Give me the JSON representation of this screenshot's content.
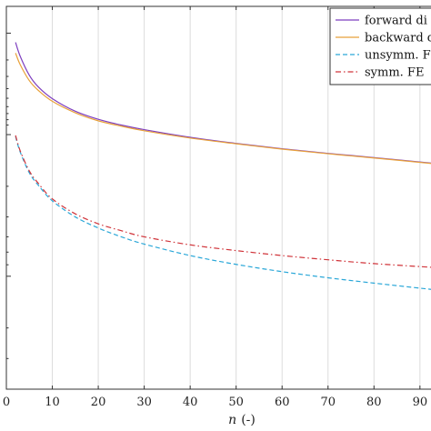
{
  "chart_data": {
    "type": "line",
    "title": "",
    "xlabel_var": "n",
    "xlabel_unit": "(-)",
    "ylabel": "",
    "xlim": [
      0,
      93
    ],
    "ylim": [
      0,
      1
    ],
    "x_ticks": [
      0,
      10,
      20,
      30,
      40,
      50,
      60,
      70,
      80,
      90
    ],
    "grid": "vertical",
    "legend_position": "top-right",
    "series": [
      {
        "name": "forward di",
        "color": "#7e3fbf",
        "dash": "solid",
        "x": [
          2,
          3,
          5,
          7,
          10,
          15,
          20,
          25,
          30,
          40,
          50,
          60,
          70,
          80,
          93
        ],
        "y": [
          0.906,
          0.87,
          0.82,
          0.789,
          0.759,
          0.726,
          0.705,
          0.69,
          0.678,
          0.658,
          0.642,
          0.628,
          0.616,
          0.605,
          0.59
        ]
      },
      {
        "name": "backward d",
        "color": "#e8a13a",
        "dash": "solid",
        "x": [
          2,
          3,
          5,
          7,
          10,
          15,
          20,
          25,
          30,
          40,
          50,
          60,
          70,
          80,
          93
        ],
        "y": [
          0.878,
          0.848,
          0.806,
          0.78,
          0.752,
          0.722,
          0.701,
          0.687,
          0.675,
          0.656,
          0.641,
          0.627,
          0.615,
          0.604,
          0.589
        ]
      },
      {
        "name": "unsymm. F",
        "color": "#2aa7d8",
        "dash": "dashed",
        "x": [
          2,
          3,
          5,
          7,
          10,
          15,
          20,
          25,
          30,
          40,
          50,
          60,
          70,
          80,
          93
        ],
        "y": [
          0.66,
          0.62,
          0.565,
          0.532,
          0.492,
          0.45,
          0.421,
          0.398,
          0.379,
          0.349,
          0.326,
          0.307,
          0.291,
          0.277,
          0.26
        ]
      },
      {
        "name": "symm. FE",
        "color": "#d0343a",
        "dash": "dashdot",
        "x": [
          2,
          3,
          5,
          7,
          10,
          15,
          20,
          25,
          30,
          40,
          50,
          60,
          70,
          80,
          93
        ],
        "y": [
          0.663,
          0.623,
          0.57,
          0.537,
          0.497,
          0.458,
          0.432,
          0.414,
          0.398,
          0.377,
          0.362,
          0.349,
          0.338,
          0.328,
          0.318
        ]
      }
    ]
  }
}
